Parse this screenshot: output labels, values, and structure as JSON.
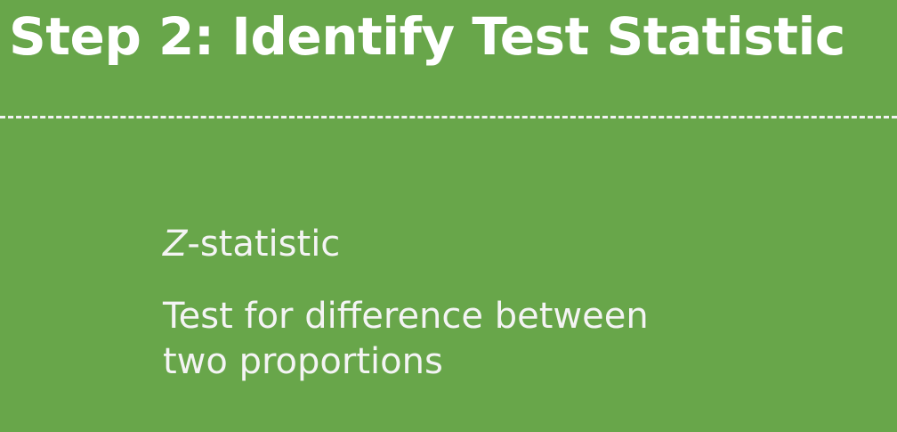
{
  "slide": {
    "title": "Step 2: Identify Test Statistic",
    "statistic_letter": "Z",
    "statistic_suffix": "-statistic",
    "description_line1": "Test for difference between",
    "description_line2": "two proportions"
  },
  "colors": {
    "background": "#68a64a",
    "text": "#ffffff"
  }
}
